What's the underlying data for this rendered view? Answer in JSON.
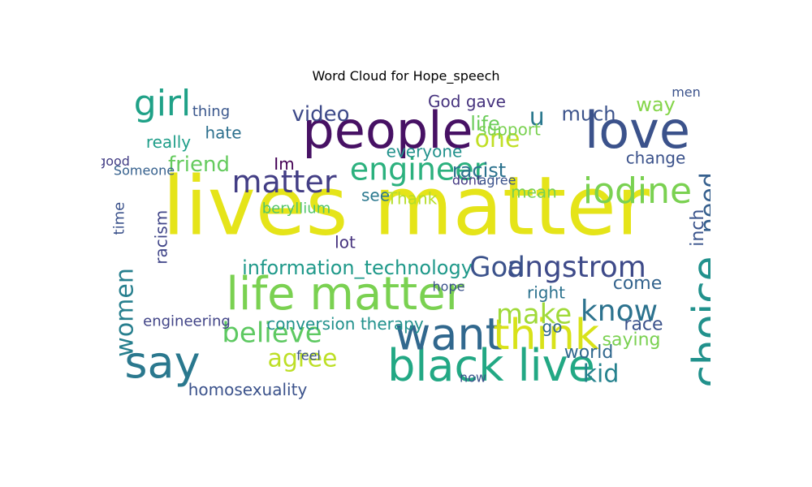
{
  "chart_data": {
    "type": "wordcloud",
    "title": "Word Cloud for Hope_speech",
    "palette": "viridis",
    "words": [
      {
        "text": "lives matter",
        "size": 100,
        "color": "#e5e419",
        "x": 0.5,
        "y": 0.4
      },
      {
        "text": "people",
        "size": 62,
        "color": "#471164",
        "x": 0.47,
        "y": 0.15
      },
      {
        "text": "love",
        "size": 62,
        "color": "#3b528b",
        "x": 0.88,
        "y": 0.15
      },
      {
        "text": "life matter",
        "size": 56,
        "color": "#7ad151",
        "x": 0.4,
        "y": 0.67
      },
      {
        "text": "black live",
        "size": 54,
        "color": "#22a884",
        "x": 0.64,
        "y": 0.9
      },
      {
        "text": "say",
        "size": 54,
        "color": "#2a788e",
        "x": 0.1,
        "y": 0.89
      },
      {
        "text": "want",
        "size": 54,
        "color": "#31688e",
        "x": 0.57,
        "y": 0.8
      },
      {
        "text": "think",
        "size": 52,
        "color": "#d8e219",
        "x": 0.73,
        "y": 0.8
      },
      {
        "text": "choice",
        "size": 50,
        "color": "#21918c",
        "x": 1.0,
        "y": 0.75,
        "vertical": true
      },
      {
        "text": "girl",
        "size": 44,
        "color": "#1fa187",
        "x": 0.1,
        "y": 0.06
      },
      {
        "text": "iodine",
        "size": 44,
        "color": "#7ad151",
        "x": 0.88,
        "y": 0.34
      },
      {
        "text": "matter",
        "size": 38,
        "color": "#433e85",
        "x": 0.3,
        "y": 0.31
      },
      {
        "text": "engineer",
        "size": 38,
        "color": "#2cb17e",
        "x": 0.52,
        "y": 0.27
      },
      {
        "text": "angstrom",
        "size": 36,
        "color": "#3e4a89",
        "x": 0.78,
        "y": 0.58
      },
      {
        "text": "know",
        "size": 36,
        "color": "#2c728e",
        "x": 0.85,
        "y": 0.72
      },
      {
        "text": "make",
        "size": 34,
        "color": "#a0da39",
        "x": 0.71,
        "y": 0.73
      },
      {
        "text": "God",
        "size": 34,
        "color": "#3b528b",
        "x": 0.65,
        "y": 0.58
      },
      {
        "text": "believe",
        "size": 34,
        "color": "#5ec962",
        "x": 0.28,
        "y": 0.79
      },
      {
        "text": "agree",
        "size": 30,
        "color": "#bddf26",
        "x": 0.33,
        "y": 0.87
      },
      {
        "text": "kid",
        "size": 30,
        "color": "#26828e",
        "x": 0.82,
        "y": 0.92
      },
      {
        "text": "one",
        "size": 30,
        "color": "#c0df25",
        "x": 0.65,
        "y": 0.17
      },
      {
        "text": "need",
        "size": 30,
        "color": "#355f8d",
        "x": 1.0,
        "y": 0.37,
        "vertical": true
      },
      {
        "text": "women",
        "size": 30,
        "color": "#277f8e",
        "x": 0.04,
        "y": 0.72,
        "vertical": true
      },
      {
        "text": "u",
        "size": 30,
        "color": "#2a788e",
        "x": 0.715,
        "y": 0.1
      },
      {
        "text": "information_technology",
        "size": 24,
        "color": "#1f998a",
        "x": 0.42,
        "y": 0.58
      },
      {
        "text": "video",
        "size": 26,
        "color": "#3e4a89",
        "x": 0.36,
        "y": 0.09
      },
      {
        "text": "friend",
        "size": 26,
        "color": "#65cb5e",
        "x": 0.16,
        "y": 0.25
      },
      {
        "text": "much",
        "size": 24,
        "color": "#3b528b",
        "x": 0.8,
        "y": 0.09
      },
      {
        "text": "racist",
        "size": 24,
        "color": "#2c728e",
        "x": 0.62,
        "y": 0.27
      },
      {
        "text": "life",
        "size": 24,
        "color": "#6ccd5a",
        "x": 0.63,
        "y": 0.12
      },
      {
        "text": "way",
        "size": 24,
        "color": "#85d54a",
        "x": 0.91,
        "y": 0.06
      },
      {
        "text": "inch",
        "size": 22,
        "color": "#3a548c",
        "x": 0.98,
        "y": 0.45,
        "vertical": true
      },
      {
        "text": "saying",
        "size": 22,
        "color": "#7ad151",
        "x": 0.87,
        "y": 0.81
      },
      {
        "text": "world",
        "size": 22,
        "color": "#31688e",
        "x": 0.8,
        "y": 0.85
      },
      {
        "text": "race",
        "size": 22,
        "color": "#3b528b",
        "x": 0.89,
        "y": 0.76
      },
      {
        "text": "come",
        "size": 22,
        "color": "#33638d",
        "x": 0.88,
        "y": 0.63
      },
      {
        "text": "homosexuality",
        "size": 20,
        "color": "#3b528b",
        "x": 0.24,
        "y": 0.97
      },
      {
        "text": "conversion therapy",
        "size": 20,
        "color": "#21918c",
        "x": 0.4,
        "y": 0.76
      },
      {
        "text": "engineering",
        "size": 18,
        "color": "#414487",
        "x": 0.14,
        "y": 0.75
      },
      {
        "text": "everyone",
        "size": 20,
        "color": "#21918c",
        "x": 0.53,
        "y": 0.21
      },
      {
        "text": "support",
        "size": 20,
        "color": "#7ad151",
        "x": 0.67,
        "y": 0.14
      },
      {
        "text": "God gave",
        "size": 20,
        "color": "#46337e",
        "x": 0.6,
        "y": 0.05
      },
      {
        "text": "really",
        "size": 20,
        "color": "#1f9e89",
        "x": 0.11,
        "y": 0.18
      },
      {
        "text": "hate",
        "size": 20,
        "color": "#2d708e",
        "x": 0.2,
        "y": 0.15
      },
      {
        "text": "Im",
        "size": 20,
        "color": "#440154",
        "x": 0.3,
        "y": 0.25
      },
      {
        "text": "beryllium",
        "size": 18,
        "color": "#52c569",
        "x": 0.32,
        "y": 0.39
      },
      {
        "text": "see",
        "size": 20,
        "color": "#2a788e",
        "x": 0.45,
        "y": 0.35
      },
      {
        "text": "Thank",
        "size": 20,
        "color": "#b5de2b",
        "x": 0.51,
        "y": 0.36
      },
      {
        "text": "mean",
        "size": 20,
        "color": "#7ad151",
        "x": 0.71,
        "y": 0.34
      },
      {
        "text": "change",
        "size": 20,
        "color": "#3b528b",
        "x": 0.91,
        "y": 0.23
      },
      {
        "text": "thing",
        "size": 18,
        "color": "#39568c",
        "x": 0.18,
        "y": 0.08
      },
      {
        "text": "right",
        "size": 20,
        "color": "#2c728e",
        "x": 0.73,
        "y": 0.66
      },
      {
        "text": "lot",
        "size": 20,
        "color": "#46337e",
        "x": 0.4,
        "y": 0.5
      },
      {
        "text": "go",
        "size": 20,
        "color": "#31688e",
        "x": 0.74,
        "y": 0.77
      },
      {
        "text": "racism",
        "size": 20,
        "color": "#404588",
        "x": 0.1,
        "y": 0.48,
        "vertical": true
      },
      {
        "text": "time",
        "size": 18,
        "color": "#3b528b",
        "x": 0.03,
        "y": 0.42,
        "vertical": true
      },
      {
        "text": "good",
        "size": 16,
        "color": "#433e85",
        "x": 0.02,
        "y": 0.24
      },
      {
        "text": "Someone",
        "size": 16,
        "color": "#35608d",
        "x": 0.07,
        "y": 0.27
      },
      {
        "text": "men",
        "size": 16,
        "color": "#3b528b",
        "x": 0.96,
        "y": 0.02
      },
      {
        "text": "dont",
        "size": 16,
        "color": "#443983",
        "x": 0.6,
        "y": 0.3
      },
      {
        "text": "agree",
        "size": 16,
        "color": "#3b528b",
        "x": 0.65,
        "y": 0.3
      },
      {
        "text": "hope",
        "size": 16,
        "color": "#3b528b",
        "x": 0.57,
        "y": 0.64
      },
      {
        "text": "now",
        "size": 16,
        "color": "#3b528b",
        "x": 0.61,
        "y": 0.93
      },
      {
        "text": "feel",
        "size": 16,
        "color": "#3b528b",
        "x": 0.34,
        "y": 0.86
      }
    ]
  }
}
